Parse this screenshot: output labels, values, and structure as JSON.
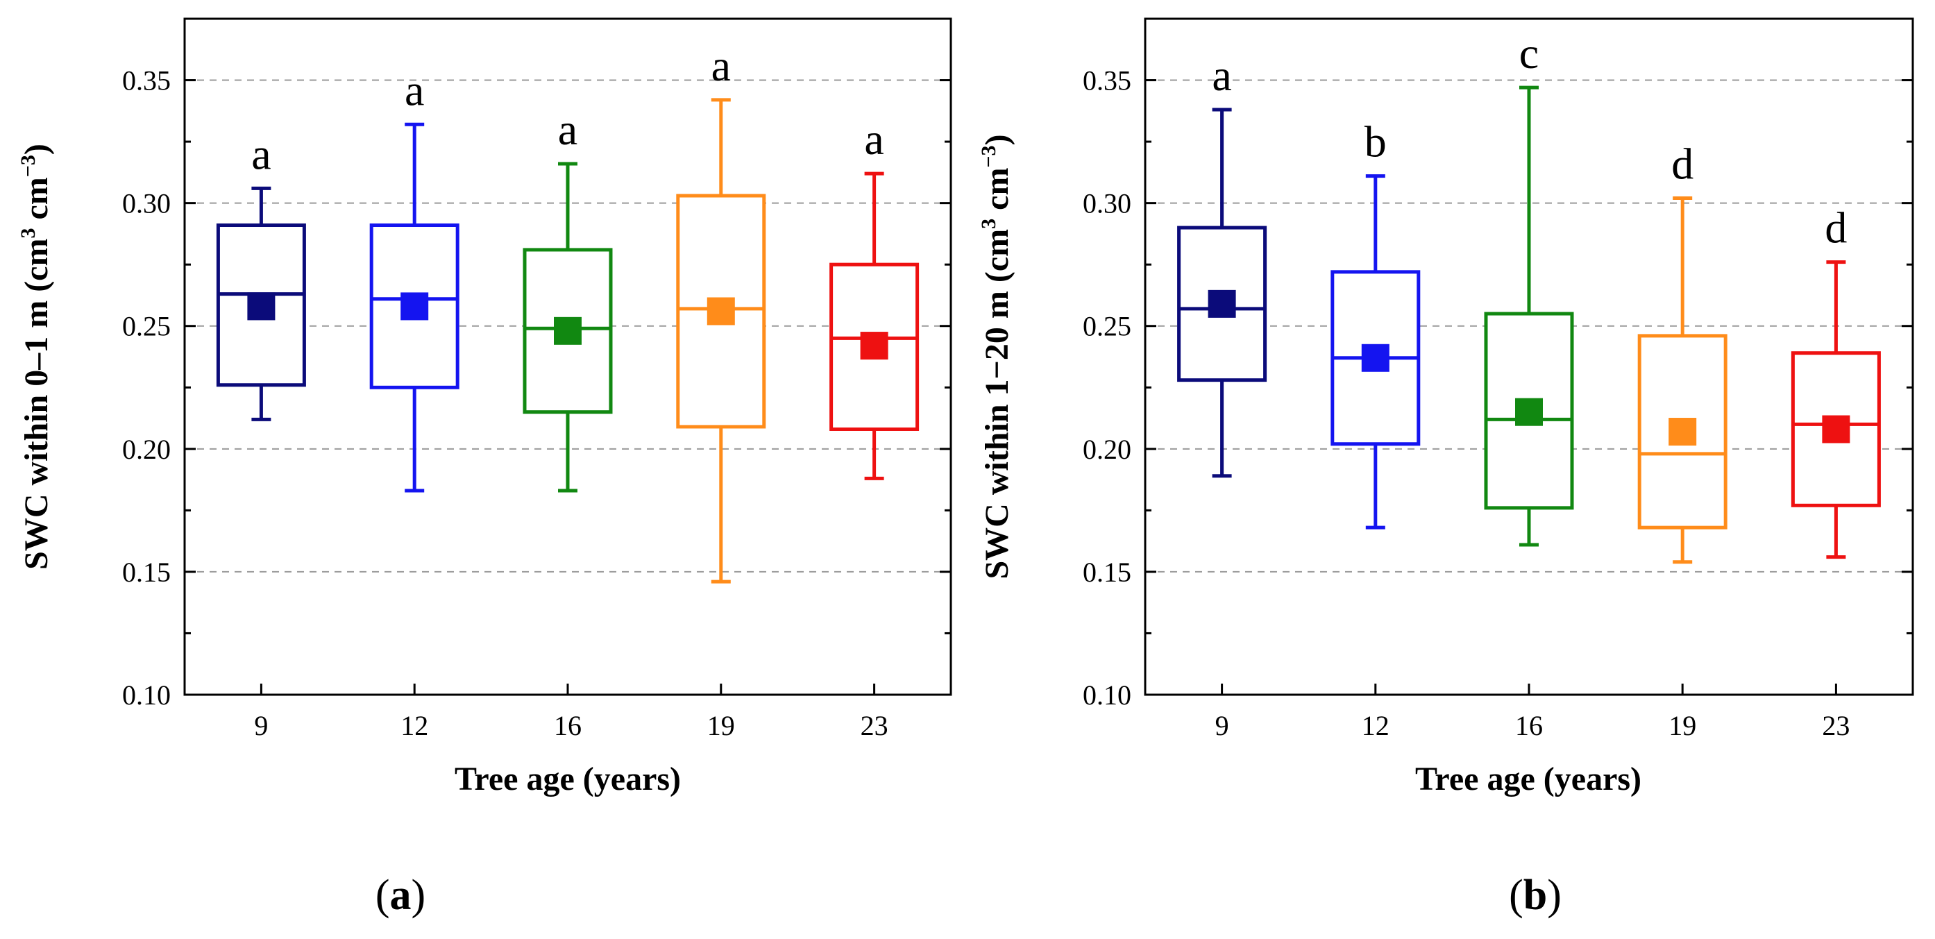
{
  "chart_data": [
    {
      "type": "box",
      "panel_label": "(a)",
      "panel_letter": "a",
      "title": "",
      "xlabel": "Tree age (years)",
      "ylabel_main": "SWC within 0–1 m (cm",
      "ylabel_sup1": "3",
      "ylabel_mid": " cm",
      "ylabel_sup2": "−3",
      "ylabel_end": ")",
      "ylim": [
        0.1,
        0.375
      ],
      "yticks": [
        0.1,
        0.15,
        0.2,
        0.25,
        0.3,
        0.35
      ],
      "ytick_labels": [
        "0.10",
        "0.15",
        "0.20",
        "0.25",
        "0.30",
        "0.35"
      ],
      "gridlines": [
        0.15,
        0.2,
        0.25,
        0.3,
        0.35
      ],
      "categories": [
        "9",
        "12",
        "16",
        "19",
        "23"
      ],
      "boxes": [
        {
          "category": "9",
          "color": "#0b0b7a",
          "min": 0.212,
          "q1": 0.226,
          "median": 0.263,
          "q3": 0.291,
          "max": 0.306,
          "mean": 0.258,
          "letter": "a"
        },
        {
          "category": "12",
          "color": "#1414f0",
          "min": 0.183,
          "q1": 0.225,
          "median": 0.261,
          "q3": 0.291,
          "max": 0.332,
          "mean": 0.258,
          "letter": "a"
        },
        {
          "category": "16",
          "color": "#118811",
          "min": 0.183,
          "q1": 0.215,
          "median": 0.249,
          "q3": 0.281,
          "max": 0.316,
          "mean": 0.248,
          "letter": "a"
        },
        {
          "category": "19",
          "color": "#ff8c1a",
          "min": 0.146,
          "q1": 0.209,
          "median": 0.257,
          "q3": 0.303,
          "max": 0.342,
          "mean": 0.256,
          "letter": "a"
        },
        {
          "category": "23",
          "color": "#ee1111",
          "min": 0.188,
          "q1": 0.208,
          "median": 0.245,
          "q3": 0.275,
          "max": 0.312,
          "mean": 0.242,
          "letter": "a"
        }
      ]
    },
    {
      "type": "box",
      "panel_label": "(b)",
      "panel_letter": "b",
      "title": "",
      "xlabel": "Tree age (years)",
      "ylabel_main": "SWC within 1−20 m (cm",
      "ylabel_sup1": "3",
      "ylabel_mid": " cm",
      "ylabel_sup2": "−3",
      "ylabel_end": ")",
      "ylim": [
        0.1,
        0.375
      ],
      "yticks": [
        0.1,
        0.15,
        0.2,
        0.25,
        0.3,
        0.35
      ],
      "ytick_labels": [
        "0.10",
        "0.15",
        "0.20",
        "0.25",
        "0.30",
        "0.35"
      ],
      "gridlines": [
        0.15,
        0.2,
        0.25,
        0.3,
        0.35
      ],
      "categories": [
        "9",
        "12",
        "16",
        "19",
        "23"
      ],
      "boxes": [
        {
          "category": "9",
          "color": "#0b0b7a",
          "min": 0.189,
          "q1": 0.228,
          "median": 0.257,
          "q3": 0.29,
          "max": 0.338,
          "mean": 0.259,
          "letter": "a"
        },
        {
          "category": "12",
          "color": "#1414f0",
          "min": 0.168,
          "q1": 0.202,
          "median": 0.237,
          "q3": 0.272,
          "max": 0.311,
          "mean": 0.237,
          "letter": "b"
        },
        {
          "category": "16",
          "color": "#118811",
          "min": 0.161,
          "q1": 0.176,
          "median": 0.212,
          "q3": 0.255,
          "max": 0.347,
          "mean": 0.215,
          "letter": "c"
        },
        {
          "category": "19",
          "color": "#ff8c1a",
          "min": 0.154,
          "q1": 0.168,
          "median": 0.198,
          "q3": 0.246,
          "max": 0.302,
          "mean": 0.207,
          "letter": "d"
        },
        {
          "category": "23",
          "color": "#ee1111",
          "min": 0.156,
          "q1": 0.177,
          "median": 0.21,
          "q3": 0.239,
          "max": 0.276,
          "mean": 0.208,
          "letter": "d"
        }
      ]
    }
  ]
}
